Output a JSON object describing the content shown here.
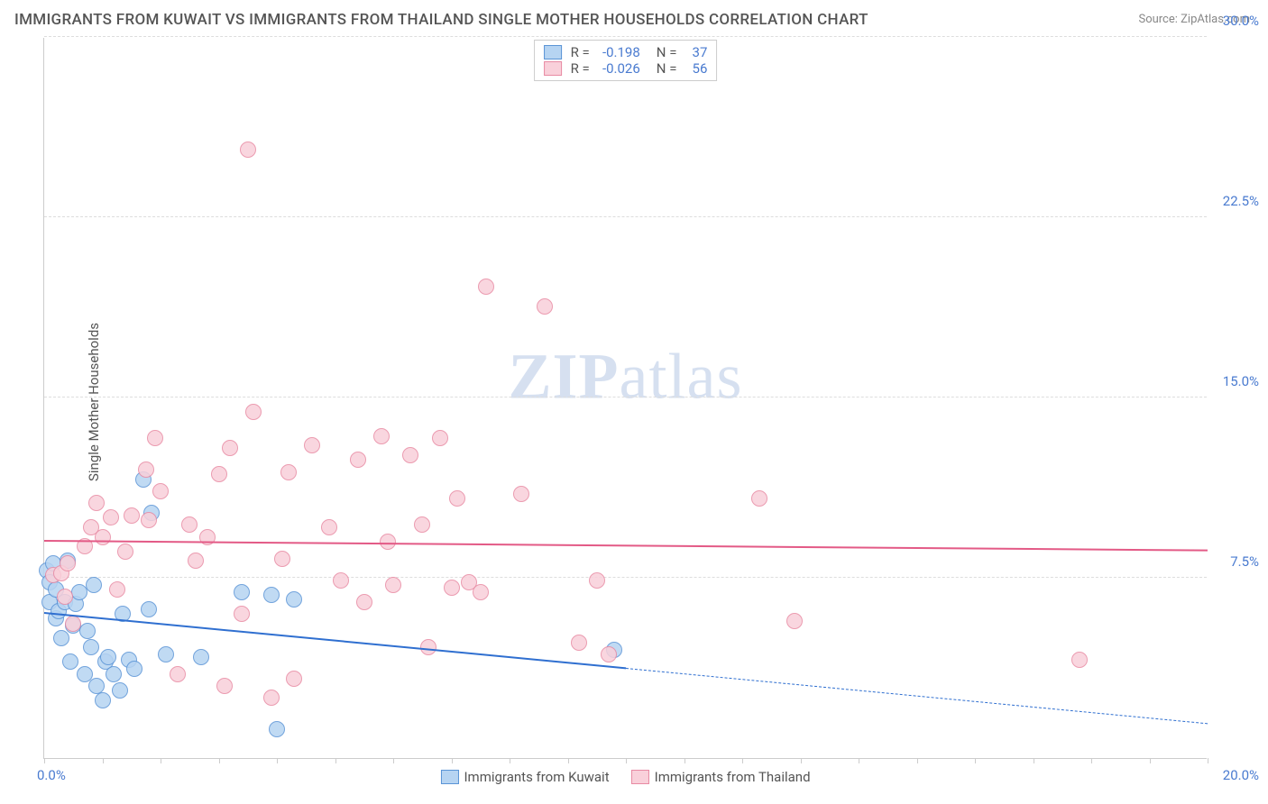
{
  "title": "IMMIGRANTS FROM KUWAIT VS IMMIGRANTS FROM THAILAND SINGLE MOTHER HOUSEHOLDS CORRELATION CHART",
  "source_label": "Source: ",
  "source_name": "ZipAtlas.com",
  "ylabel": "Single Mother Households",
  "watermark_bold": "ZIP",
  "watermark_rest": "atlas",
  "chart": {
    "type": "scatter",
    "background_color": "#ffffff",
    "grid_color": "#dddddd",
    "grid_dashed": true,
    "axis_color": "#cccccc",
    "tick_label_color": "#4a7bd0",
    "xlim": [
      0,
      20
    ],
    "ylim": [
      0,
      30
    ],
    "xtick_positions": [
      0,
      1,
      2,
      3,
      4,
      5,
      6,
      7,
      8,
      9,
      10,
      11,
      12,
      13,
      14,
      15,
      16,
      17,
      18,
      19,
      20
    ],
    "xtick_labels": {
      "0": "0.0%",
      "20": "20.0%"
    },
    "ytick_positions": [
      7.5,
      15.0,
      22.5,
      30.0
    ],
    "ytick_labels": [
      "7.5%",
      "15.0%",
      "22.5%",
      "30.0%"
    ],
    "marker_radius": 9,
    "marker_stroke_width": 1.5,
    "trend_line_width": 2
  },
  "series": [
    {
      "key": "kuwait",
      "label": "Immigrants from Kuwait",
      "fill_color": "#b6d4f2",
      "stroke_color": "#5a94d6",
      "line_color": "#2f6fd0",
      "R": "-0.198",
      "N": "37",
      "trend": {
        "x1": 0,
        "y1": 6.0,
        "x2_solid": 10,
        "y2_solid": 3.7,
        "x2": 20,
        "y2": 1.4
      },
      "points": [
        [
          0.05,
          7.8
        ],
        [
          0.1,
          7.3
        ],
        [
          0.1,
          6.5
        ],
        [
          0.15,
          8.1
        ],
        [
          0.2,
          7.0
        ],
        [
          0.2,
          5.8
        ],
        [
          0.25,
          6.1
        ],
        [
          0.3,
          5.0
        ],
        [
          0.35,
          6.5
        ],
        [
          0.4,
          8.2
        ],
        [
          0.45,
          4.0
        ],
        [
          0.5,
          5.5
        ],
        [
          0.55,
          6.4
        ],
        [
          0.6,
          6.9
        ],
        [
          0.7,
          3.5
        ],
        [
          0.75,
          5.3
        ],
        [
          0.8,
          4.6
        ],
        [
          0.85,
          7.2
        ],
        [
          0.9,
          3.0
        ],
        [
          1.0,
          2.4
        ],
        [
          1.05,
          4.0
        ],
        [
          1.1,
          4.2
        ],
        [
          1.2,
          3.5
        ],
        [
          1.3,
          2.8
        ],
        [
          1.35,
          6.0
        ],
        [
          1.45,
          4.1
        ],
        [
          1.55,
          3.7
        ],
        [
          1.7,
          11.6
        ],
        [
          1.8,
          6.2
        ],
        [
          1.85,
          10.2
        ],
        [
          2.1,
          4.3
        ],
        [
          2.7,
          4.2
        ],
        [
          3.4,
          6.9
        ],
        [
          3.9,
          6.8
        ],
        [
          4.0,
          1.2
        ],
        [
          4.3,
          6.6
        ],
        [
          9.8,
          4.5
        ]
      ]
    },
    {
      "key": "thailand",
      "label": "Immigrants from Thailand",
      "fill_color": "#f9d0da",
      "stroke_color": "#e88aa3",
      "line_color": "#e35a86",
      "R": "-0.026",
      "N": "56",
      "trend": {
        "x1": 0,
        "y1": 9.0,
        "x2_solid": 20,
        "y2_solid": 8.6,
        "x2": 20,
        "y2": 8.6
      },
      "points": [
        [
          0.15,
          7.6
        ],
        [
          0.3,
          7.7
        ],
        [
          0.35,
          6.7
        ],
        [
          0.4,
          8.1
        ],
        [
          0.5,
          5.6
        ],
        [
          0.7,
          8.8
        ],
        [
          0.8,
          9.6
        ],
        [
          0.9,
          10.6
        ],
        [
          1.0,
          9.2
        ],
        [
          1.15,
          10.0
        ],
        [
          1.25,
          7.0
        ],
        [
          1.4,
          8.6
        ],
        [
          1.5,
          10.1
        ],
        [
          1.75,
          12.0
        ],
        [
          1.8,
          9.9
        ],
        [
          1.9,
          13.3
        ],
        [
          2.0,
          11.1
        ],
        [
          2.3,
          3.5
        ],
        [
          2.5,
          9.7
        ],
        [
          2.6,
          8.2
        ],
        [
          2.8,
          9.2
        ],
        [
          3.0,
          11.8
        ],
        [
          3.1,
          3.0
        ],
        [
          3.2,
          12.9
        ],
        [
          3.4,
          6.0
        ],
        [
          3.5,
          25.3
        ],
        [
          3.6,
          14.4
        ],
        [
          3.9,
          2.5
        ],
        [
          4.1,
          8.3
        ],
        [
          4.2,
          11.9
        ],
        [
          4.3,
          3.3
        ],
        [
          4.6,
          13.0
        ],
        [
          4.9,
          9.6
        ],
        [
          5.1,
          7.4
        ],
        [
          5.4,
          12.4
        ],
        [
          5.5,
          6.5
        ],
        [
          5.8,
          13.4
        ],
        [
          6.0,
          7.2
        ],
        [
          6.3,
          12.6
        ],
        [
          6.5,
          9.7
        ],
        [
          6.6,
          4.6
        ],
        [
          6.8,
          13.3
        ],
        [
          7.0,
          7.1
        ],
        [
          7.1,
          10.8
        ],
        [
          7.3,
          7.3
        ],
        [
          7.6,
          19.6
        ],
        [
          8.2,
          11.0
        ],
        [
          8.6,
          18.8
        ],
        [
          9.2,
          4.8
        ],
        [
          9.5,
          7.4
        ],
        [
          9.7,
          4.3
        ],
        [
          12.3,
          10.8
        ],
        [
          12.9,
          5.7
        ],
        [
          17.8,
          4.1
        ],
        [
          7.5,
          6.9
        ],
        [
          5.9,
          9.0
        ]
      ]
    }
  ],
  "legend_top": {
    "R_label": "R =",
    "N_label": "N ="
  }
}
